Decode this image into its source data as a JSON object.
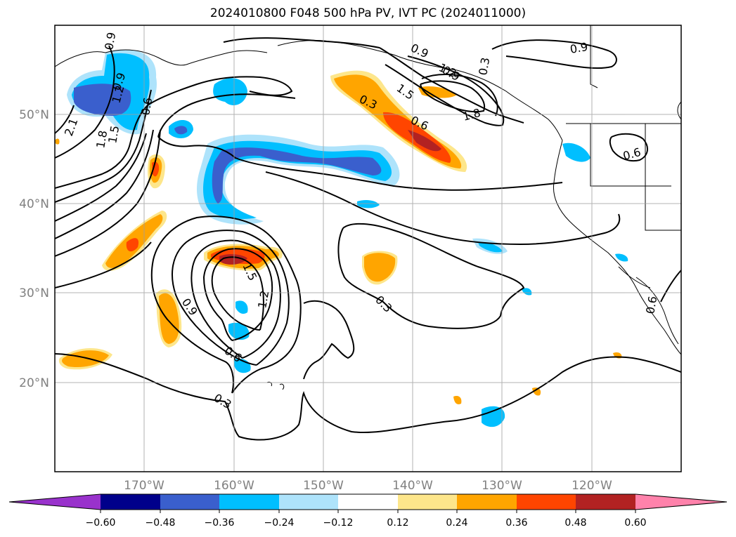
{
  "title": "2024010800 F048 500 hPa PV, IVT PC (2024011000)",
  "lat_ticks": [
    "20°N",
    "30°N",
    "40°N",
    "50°N"
  ],
  "lon_ticks": [
    "170°W",
    "160°W",
    "150°W",
    "140°W",
    "130°W",
    "120°W"
  ],
  "colorbar": {
    "colors": [
      "#9932cc",
      "#00008b",
      "#3a5fcd",
      "#00bfff",
      "#aee3fb",
      "#ffffff",
      "#fde68b",
      "#ffa500",
      "#ff4500",
      "#b22222",
      "#ff82ab"
    ],
    "labels": [
      "−0.60",
      "−0.48",
      "−0.36",
      "−0.24",
      "−0.12",
      "0.12",
      "0.24",
      "0.36",
      "0.48",
      "0.60"
    ]
  },
  "contour_labels": [
    "0.9",
    "1.2",
    "1.5",
    "1.8",
    "2.1",
    "1.8",
    "1.5",
    "1.2",
    "0.9",
    "0.6",
    "0.3",
    "0.9",
    "0.6",
    "0.3",
    "0.6",
    "0.9",
    "1.2",
    "1.5",
    "0.9",
    "0.6",
    "0.3",
    "0.6",
    "0.3",
    "0.9"
  ]
}
